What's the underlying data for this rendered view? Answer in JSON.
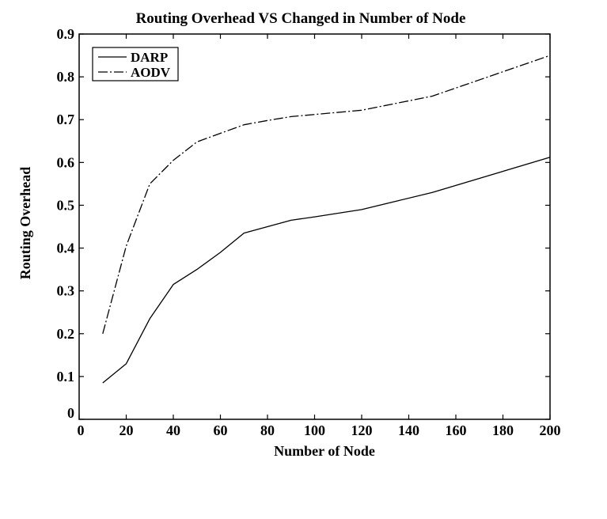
{
  "chart_data": {
    "type": "line",
    "title": "Routing Overhead VS Changed  in  Number of Node",
    "xlabel": "Number of Node",
    "ylabel": "Routing Overhead",
    "xlim": [
      0,
      200
    ],
    "ylim": [
      0,
      0.9
    ],
    "xticks": [
      0,
      20,
      40,
      60,
      80,
      100,
      120,
      140,
      160,
      180,
      200
    ],
    "yticks": [
      0,
      0.1,
      0.2,
      0.3,
      0.4,
      0.5,
      0.6,
      0.7,
      0.8,
      0.9
    ],
    "xtick_labels": [
      "0",
      "20",
      "40",
      "60",
      "80",
      "100",
      "120",
      "140",
      "160",
      "180",
      "200"
    ],
    "ytick_labels": [
      "0",
      "0.1",
      "0.2",
      "0.3",
      "0.4",
      "0.5",
      "0.6",
      "0.7",
      "0.8",
      "0.9"
    ],
    "grid": false,
    "legend_position": "top-left",
    "series": [
      {
        "name": "DARP",
        "style": "solid",
        "color": "#000000",
        "x": [
          10,
          20,
          30,
          40,
          50,
          60,
          70,
          80,
          90,
          100,
          120,
          150,
          200
        ],
        "y": [
          0.085,
          0.13,
          0.235,
          0.315,
          0.35,
          0.39,
          0.435,
          0.45,
          0.465,
          0.473,
          0.49,
          0.53,
          0.612
        ]
      },
      {
        "name": "AODV",
        "style": "dashdot",
        "color": "#000000",
        "x": [
          10,
          20,
          30,
          40,
          50,
          60,
          70,
          80,
          90,
          100,
          120,
          150,
          200
        ],
        "y": [
          0.2,
          0.405,
          0.55,
          0.605,
          0.648,
          0.668,
          0.688,
          0.698,
          0.707,
          0.712,
          0.722,
          0.755,
          0.85
        ]
      }
    ]
  }
}
